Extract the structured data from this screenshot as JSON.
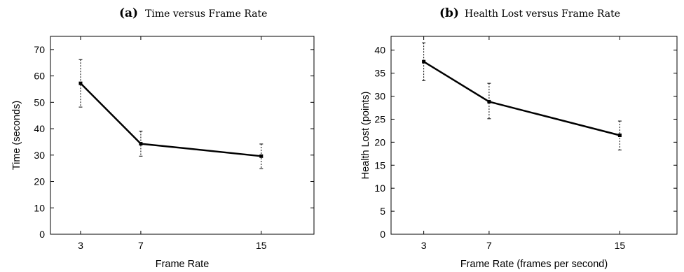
{
  "chart_data": [
    {
      "type": "line",
      "panel_label": "(a)",
      "title": "Time versus Frame Rate",
      "xlabel": "Frame Rate",
      "ylabel": "Time (seconds)",
      "categories": [
        3,
        7,
        15
      ],
      "x_tick_labels": [
        "3",
        "7",
        "15"
      ],
      "y_ticks": [
        0,
        10,
        20,
        30,
        40,
        50,
        60,
        70
      ],
      "y_tick_labels": [
        "0",
        "10",
        "20",
        "30",
        "40",
        "50",
        "60",
        "70"
      ],
      "xlim": [
        1,
        18.5
      ],
      "ylim": [
        0,
        75
      ],
      "series": [
        {
          "values": [
            57.2,
            34.3,
            29.6
          ],
          "error_low": [
            48.2,
            29.6,
            24.8
          ],
          "error_high": [
            66.2,
            39.1,
            34.2
          ],
          "color": "#000000"
        }
      ],
      "grid": false,
      "legend": "none"
    },
    {
      "type": "line",
      "panel_label": "(b)",
      "title": "Health Lost versus Frame Rate",
      "xlabel": "Frame Rate (frames per second)",
      "ylabel": "Health Lost (points)",
      "categories": [
        3,
        7,
        15
      ],
      "x_tick_labels": [
        "3",
        "7",
        "15"
      ],
      "y_ticks": [
        0,
        5,
        10,
        15,
        20,
        25,
        30,
        35,
        40
      ],
      "y_tick_labels": [
        "0",
        "5",
        "10",
        "15",
        "20",
        "25",
        "30",
        "35",
        "40"
      ],
      "xlim": [
        1,
        18.5
      ],
      "ylim": [
        0,
        43
      ],
      "series": [
        {
          "values": [
            37.5,
            28.8,
            21.5
          ],
          "error_low": [
            33.4,
            25.1,
            18.3
          ],
          "error_high": [
            41.6,
            32.8,
            24.6
          ],
          "color": "#000000"
        }
      ],
      "grid": false,
      "legend": "none"
    }
  ]
}
